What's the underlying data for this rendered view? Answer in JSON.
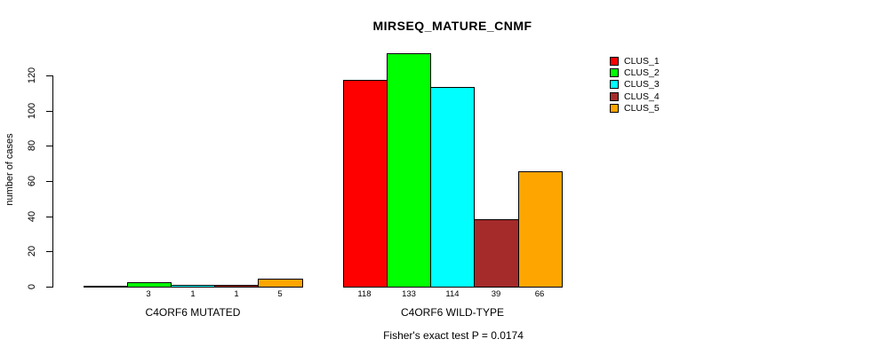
{
  "chart_data": {
    "type": "bar",
    "title": "MIRSEQ_MATURE_CNMF",
    "ylabel": "number of cases",
    "xlabel": "",
    "ylim": [
      0,
      133
    ],
    "yticks": [
      0,
      20,
      40,
      60,
      80,
      100,
      120
    ],
    "grid": false,
    "legend_position": "top-right",
    "categories": [
      "C4ORF6 MUTATED",
      "C4ORF6 WILD-TYPE"
    ],
    "series": [
      {
        "name": "CLUS_1",
        "color": "#FF0000",
        "values": [
          0,
          118
        ]
      },
      {
        "name": "CLUS_2",
        "color": "#00FF00",
        "values": [
          3,
          133
        ]
      },
      {
        "name": "CLUS_3",
        "color": "#00FFFF",
        "values": [
          1,
          114
        ]
      },
      {
        "name": "CLUS_4",
        "color": "#A52A2A",
        "values": [
          1,
          39
        ]
      },
      {
        "name": "CLUS_5",
        "color": "#FFA500",
        "values": [
          5,
          66
        ]
      }
    ],
    "bar_value_labels": [
      [
        "",
        "3",
        "1",
        "1",
        "5"
      ],
      [
        "118",
        "133",
        "114",
        "39",
        "66"
      ]
    ],
    "annotation": "Fisher's exact test P = 0.0174"
  }
}
